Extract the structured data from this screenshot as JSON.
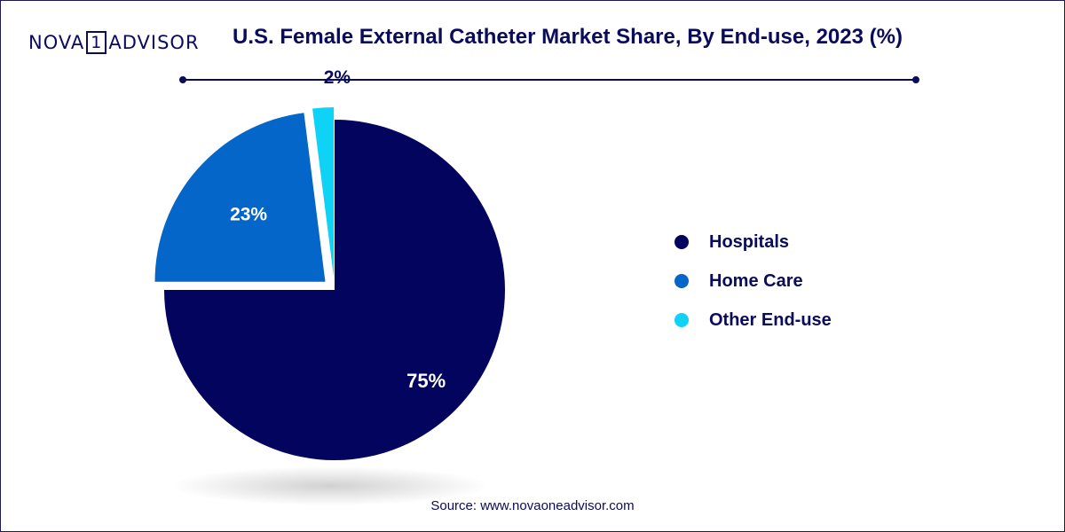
{
  "brand": {
    "left": "NOVA",
    "box": "1",
    "right": "ADVISOR"
  },
  "title": "U.S. Female External Catheter Market Share, By End-use, 2023 (%)",
  "source": "Source: www.novaoneadvisor.com",
  "chart_data": {
    "type": "pie",
    "title": "U.S. Female External Catheter Market Share, By End-use, 2023 (%)",
    "slices": [
      {
        "name": "Hospitals",
        "value": 75,
        "label": "75%",
        "color": "#03045e"
      },
      {
        "name": "Home Care",
        "value": 23,
        "label": "23%",
        "color": "#0466c8"
      },
      {
        "name": "Other End-use",
        "value": 2,
        "label": "2%",
        "color": "#0fd2f7"
      }
    ],
    "legend_position": "right"
  }
}
